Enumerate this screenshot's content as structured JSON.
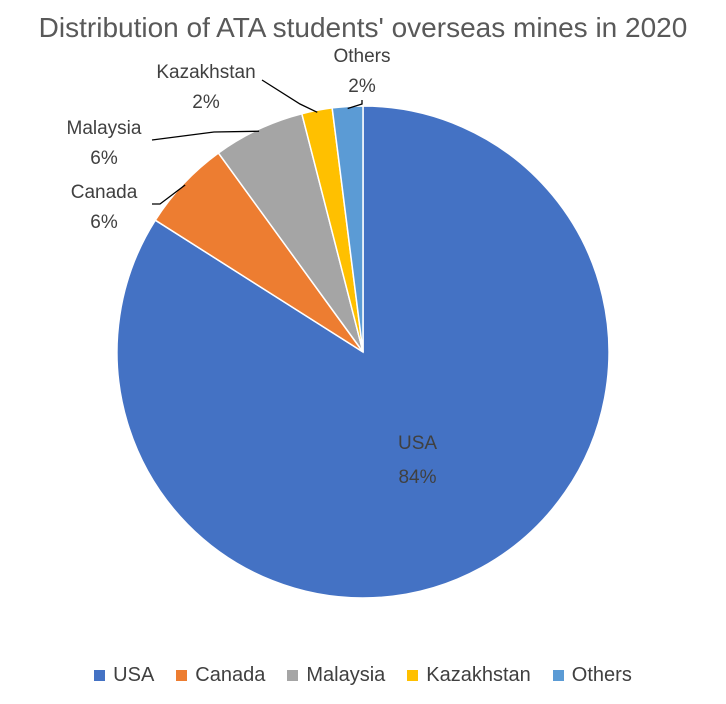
{
  "chart_data": {
    "type": "pie",
    "title": "Distribution of ATA students' overseas mines in 2020",
    "start_angle_deg": 0,
    "direction": "clockwise",
    "legend_position": "bottom",
    "slices": [
      {
        "name": "USA",
        "value": 84,
        "label": "84%",
        "color": "#4472C4",
        "label_style": "inside"
      },
      {
        "name": "Canada",
        "value": 6,
        "label": "6%",
        "color": "#ED7D31",
        "label_style": "outside"
      },
      {
        "name": "Malaysia",
        "value": 6,
        "label": "6%",
        "color": "#A5A5A5",
        "label_style": "outside"
      },
      {
        "name": "Kazakhstan",
        "value": 2,
        "label": "2%",
        "color": "#FFC000",
        "label_style": "outside"
      },
      {
        "name": "Others",
        "value": 2,
        "label": "2%",
        "color": "#5B9BD5",
        "label_style": "outside"
      }
    ]
  }
}
